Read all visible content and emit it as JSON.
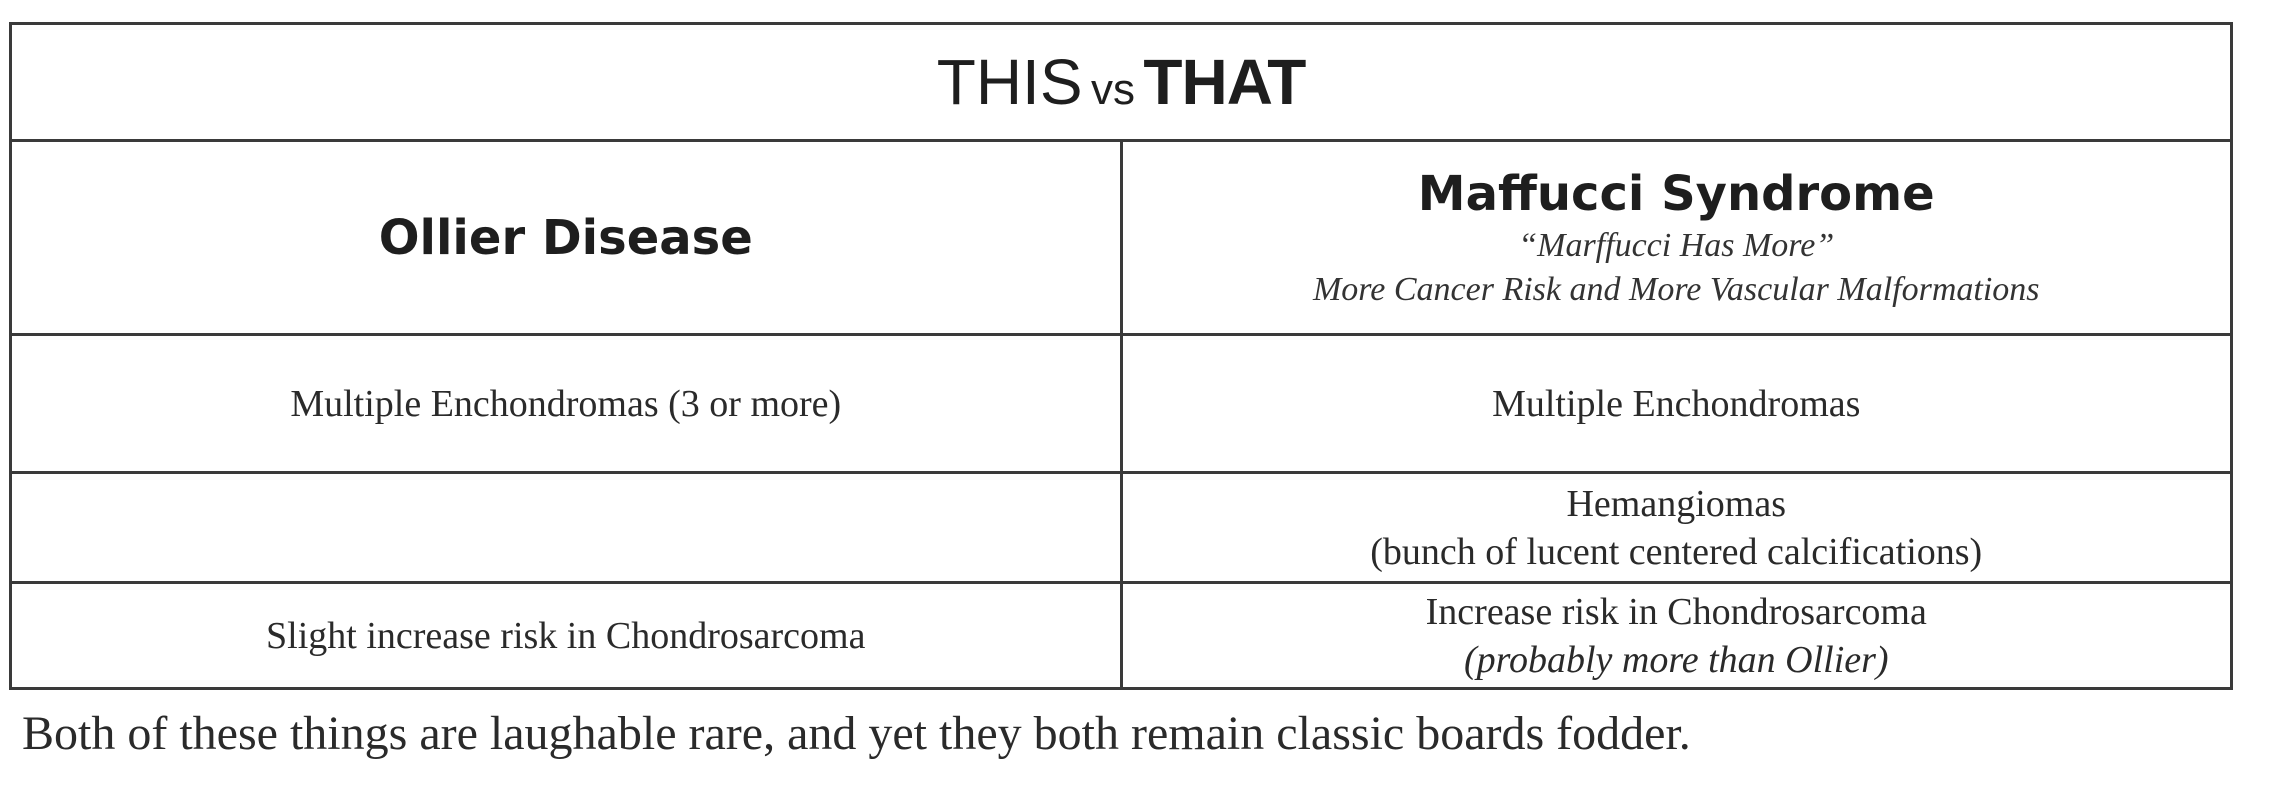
{
  "title": {
    "this": "THIS",
    "vs": "vs",
    "that": "THAT"
  },
  "columns": {
    "left": {
      "heading": "Ollier Disease"
    },
    "right": {
      "heading": "Maffucci Syndrome",
      "mnemonic": "“Marffucci Has More”",
      "subtitle": "More Cancer Risk and More Vascular Malformations"
    }
  },
  "rows": [
    {
      "left": "Multiple Enchondromas (3 or more)",
      "right": "Multiple Enchondromas"
    },
    {
      "left": "",
      "right_line1": "Hemangiomas",
      "right_line2": "(bunch of lucent centered calcifications)"
    },
    {
      "left": "Slight increase risk in Chondrosarcoma",
      "right_line1": "Increase risk in Chondrosarcoma",
      "right_line2": "(probably more than Ollier)"
    }
  ],
  "footer": "Both of these things are laughable rare, and yet they both remain classic boards fodder."
}
